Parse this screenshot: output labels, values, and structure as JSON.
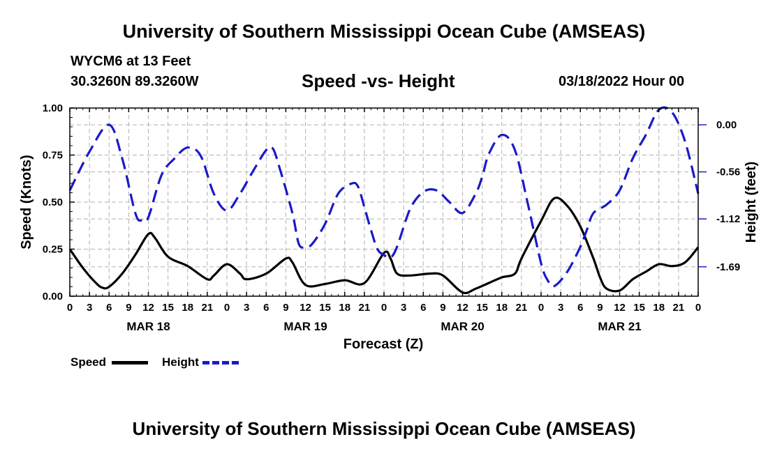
{
  "header": {
    "title": "University of Southern Mississippi Ocean Cube (AMSEAS)",
    "station": "WYCM6 at 13 Feet",
    "coords": "30.3260N  89.3260W",
    "subtitle": "Speed -vs- Height",
    "datetime": "03/18/2022 Hour 00"
  },
  "footer": {
    "title": "University of Southern Mississippi Ocean Cube (AMSEAS)"
  },
  "legend": {
    "speed_label": "Speed",
    "height_label": "Height"
  },
  "colors": {
    "speed": "#000000",
    "height": "#1a1ac8",
    "grid": "#b0b0b0"
  },
  "chart_data": {
    "type": "line",
    "title": "Speed -vs- Height",
    "xlabel": "Forecast (Z)",
    "ylabel": "Speed (Knots)",
    "y2label": "Height (feet)",
    "x_range": [
      0,
      96
    ],
    "ylim": [
      0,
      1.0
    ],
    "y2lim": [
      -2.04,
      0.2
    ],
    "y_ticks": [
      "0.00",
      "0.25",
      "0.50",
      "0.75",
      "1.00"
    ],
    "y_tick_values": [
      0,
      0.25,
      0.5,
      0.75,
      1.0
    ],
    "y2_ticks": [
      "0.00",
      "-0.56",
      "-1.12",
      "-1.69"
    ],
    "y2_tick_values": [
      0.0,
      -0.56,
      -1.12,
      -1.69
    ],
    "x_tick_labels": [
      "0",
      "3",
      "6",
      "9",
      "12",
      "15",
      "18",
      "21",
      "0",
      "3",
      "6",
      "9",
      "12",
      "15",
      "18",
      "21",
      "0",
      "3",
      "6",
      "9",
      "12",
      "15",
      "18",
      "21",
      "0",
      "3",
      "6",
      "9",
      "12",
      "15",
      "18",
      "21",
      "0"
    ],
    "date_labels": [
      {
        "label": "MAR 18",
        "hour": 12
      },
      {
        "label": "MAR 19",
        "hour": 36
      },
      {
        "label": "MAR 20",
        "hour": 60
      },
      {
        "label": "MAR 21",
        "hour": 84
      }
    ],
    "grid": true,
    "series": [
      {
        "name": "Speed",
        "axis": "left",
        "style": "solid",
        "x": [
          0,
          2,
          4,
          5,
          6,
          8,
          10,
          12,
          13,
          15,
          18,
          21,
          22,
          24,
          26,
          27,
          30,
          33,
          34,
          36,
          39,
          42,
          45,
          48,
          49,
          50,
          52,
          55,
          57,
          60,
          62,
          64,
          66,
          68,
          69,
          72,
          74,
          76,
          78,
          80,
          81,
          82,
          84,
          86,
          88,
          90,
          92,
          94,
          96
        ],
        "values": [
          0.25,
          0.15,
          0.07,
          0.045,
          0.05,
          0.12,
          0.22,
          0.33,
          0.31,
          0.21,
          0.16,
          0.09,
          0.11,
          0.17,
          0.12,
          0.09,
          0.12,
          0.2,
          0.18,
          0.06,
          0.065,
          0.085,
          0.07,
          0.23,
          0.2,
          0.12,
          0.11,
          0.12,
          0.11,
          0.02,
          0.04,
          0.07,
          0.1,
          0.12,
          0.2,
          0.4,
          0.52,
          0.48,
          0.37,
          0.2,
          0.1,
          0.04,
          0.03,
          0.09,
          0.13,
          0.17,
          0.16,
          0.18,
          0.26
        ]
      },
      {
        "name": "Height",
        "axis": "right",
        "style": "dashed",
        "x": [
          0,
          3,
          6,
          8,
          10,
          11,
          12,
          14,
          16,
          18,
          20,
          22,
          24,
          26,
          28,
          30,
          31,
          32,
          34,
          35,
          36,
          37,
          39,
          41,
          43,
          44,
          45,
          46,
          47,
          48,
          49,
          50,
          52,
          54,
          56,
          58,
          60,
          62,
          63,
          64,
          66,
          68,
          70,
          72,
          73,
          74,
          76,
          78,
          79,
          80,
          82,
          84,
          86,
          88,
          90,
          92,
          94,
          96
        ],
        "values": [
          -0.78,
          -0.32,
          0.0,
          -0.4,
          -1.05,
          -1.14,
          -1.1,
          -0.6,
          -0.4,
          -0.27,
          -0.37,
          -0.82,
          -1.02,
          -0.82,
          -0.55,
          -0.3,
          -0.28,
          -0.5,
          -1.05,
          -1.42,
          -1.45,
          -1.42,
          -1.18,
          -0.82,
          -0.7,
          -0.73,
          -0.98,
          -1.25,
          -1.48,
          -1.55,
          -1.58,
          -1.45,
          -1.0,
          -0.8,
          -0.78,
          -0.92,
          -1.05,
          -0.82,
          -0.62,
          -0.35,
          -0.12,
          -0.3,
          -0.95,
          -1.65,
          -1.85,
          -1.92,
          -1.75,
          -1.45,
          -1.25,
          -1.05,
          -0.95,
          -0.78,
          -0.4,
          -0.12,
          0.18,
          0.15,
          -0.2,
          -0.82
        ]
      }
    ]
  }
}
